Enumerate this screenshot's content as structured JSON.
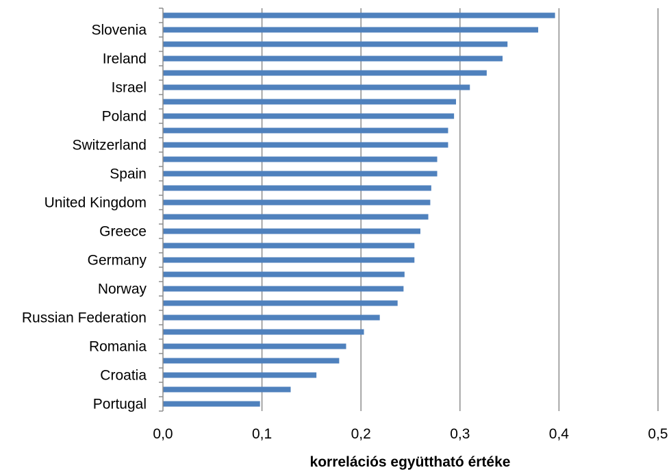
{
  "chart_data": {
    "type": "bar",
    "orientation": "horizontal",
    "xlabel": "korrelációs együttható értéke",
    "ylabel": "",
    "xlim": [
      0,
      0.5
    ],
    "x_ticks": [
      "0,0",
      "0,1",
      "0,2",
      "0,3",
      "0,4",
      "0,5"
    ],
    "grid": "vertical",
    "bar_color": "#4f81bd",
    "categories": [
      "Portugal",
      "",
      "Croatia",
      "",
      "Romania",
      "",
      "Russian Federation",
      "",
      "Norway",
      "",
      "Germany",
      "",
      "Greece",
      "",
      "United Kingdom",
      "",
      "Spain",
      "",
      "Switzerland",
      "",
      "Poland",
      "",
      "Israel",
      "",
      "Ireland",
      "",
      "Slovenia",
      ""
    ],
    "values": [
      0.098,
      0.129,
      0.155,
      0.178,
      0.185,
      0.203,
      0.219,
      0.237,
      0.243,
      0.244,
      0.254,
      0.254,
      0.26,
      0.268,
      0.27,
      0.271,
      0.277,
      0.277,
      0.288,
      0.288,
      0.294,
      0.296,
      0.31,
      0.327,
      0.343,
      0.348,
      0.379,
      0.396
    ]
  }
}
